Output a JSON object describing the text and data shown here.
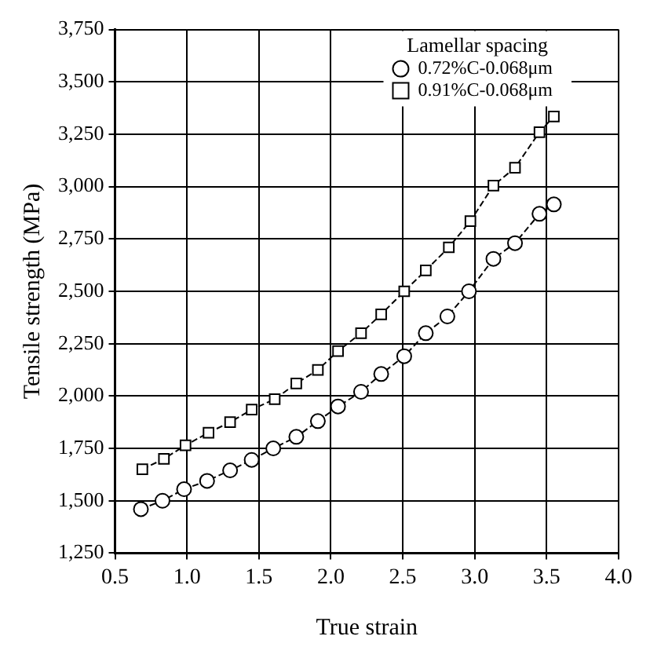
{
  "chart_data": {
    "type": "line",
    "xlabel": "True strain",
    "ylabel": "Tensile strength (MPa)",
    "legend_title": "Lamellar spacing",
    "legend": "top right",
    "grid": true,
    "line_style": "dashed",
    "xlim": [
      0.5,
      4.0
    ],
    "xticks": [
      0.5,
      {
        "value": 1,
        "label": "1.0"
      },
      1.5,
      {
        "value": 2,
        "label": "2.0"
      },
      2.5,
      {
        "value": 3,
        "label": "3.0"
      },
      3.5,
      {
        "value": 4,
        "label": "4.0"
      }
    ],
    "ylim": [
      1250,
      3750
    ],
    "yticks": [
      {
        "value": 1250,
        "label": "1,250"
      },
      {
        "value": 1500,
        "label": "1,500"
      },
      {
        "value": 1750,
        "label": "1,750"
      },
      {
        "value": 2000,
        "label": "2,000"
      },
      {
        "value": 2250,
        "label": "2,250"
      },
      {
        "value": 2500,
        "label": "2,500"
      },
      {
        "value": 2750,
        "label": "2,750"
      },
      {
        "value": 3000,
        "label": "3,000"
      },
      {
        "value": 3250,
        "label": "3,250"
      },
      {
        "value": 3500,
        "label": "3,500"
      },
      {
        "value": 3750,
        "label": "3,750"
      }
    ],
    "series": [
      {
        "name": "0.72%C-0.068μm",
        "color": "#000000",
        "marker": "circle",
        "x": [
          0.68,
          0.83,
          0.98,
          1.14,
          1.3,
          1.45,
          1.6,
          1.76,
          1.91,
          2.05,
          2.21,
          2.35,
          2.51,
          2.66,
          2.81,
          2.96,
          3.13,
          3.28,
          3.45,
          3.55
        ],
        "values": [
          1460,
          1500,
          1555,
          1595,
          1645,
          1695,
          1750,
          1805,
          1880,
          1950,
          2020,
          2105,
          2190,
          2300,
          2380,
          2500,
          2655,
          2730,
          2870,
          2915
        ]
      },
      {
        "name": "0.91%C-0.068μm",
        "color": "#000000",
        "marker": "square",
        "x": [
          0.69,
          0.84,
          0.99,
          1.15,
          1.3,
          1.45,
          1.61,
          1.76,
          1.91,
          2.05,
          2.21,
          2.35,
          2.51,
          2.66,
          2.82,
          2.97,
          3.13,
          3.28,
          3.45,
          3.55
        ],
        "values": [
          1650,
          1700,
          1765,
          1825,
          1875,
          1935,
          1985,
          2060,
          2125,
          2215,
          2300,
          2390,
          2500,
          2600,
          2710,
          2835,
          3005,
          3090,
          3260,
          3335
        ]
      }
    ]
  }
}
